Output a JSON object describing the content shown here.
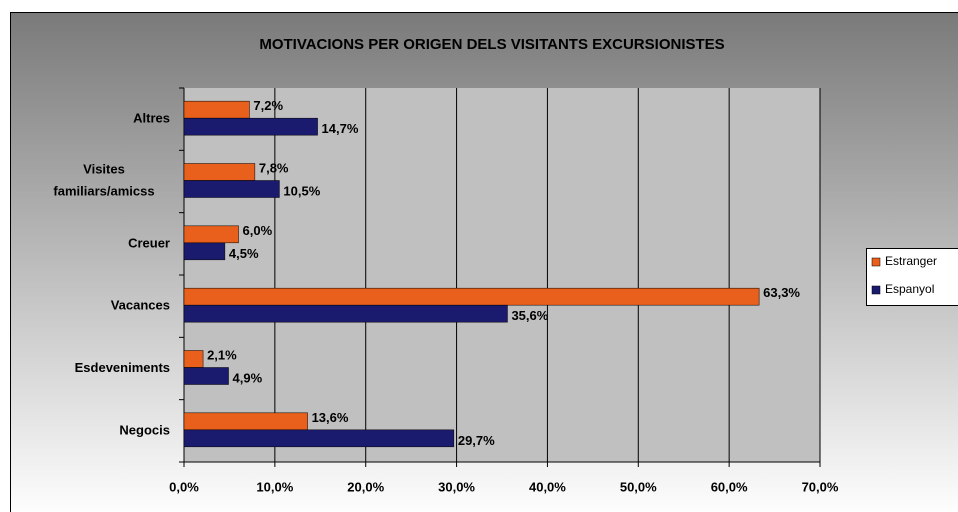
{
  "chart_data": {
    "type": "bar",
    "orientation": "horizontal",
    "title": "MOTIVACIONS PER ORIGEN DELS VISITANTS EXCURSIONISTES",
    "categories": [
      "Altres",
      "Visites familiars/amicss",
      "Creuer",
      "Vacances",
      "Esdeveniments",
      "Negocis"
    ],
    "series": [
      {
        "name": "Estranger",
        "color": "#e8601c",
        "values": [
          7.2,
          7.8,
          6.0,
          63.3,
          2.1,
          13.6
        ],
        "value_labels": [
          "7,2%",
          "7,8%",
          "6,0%",
          "63,3%",
          "2,1%",
          "13,6%"
        ]
      },
      {
        "name": "Espanyol",
        "color": "#1a1a6e",
        "values": [
          14.7,
          10.5,
          4.5,
          35.6,
          4.9,
          29.7
        ],
        "value_labels": [
          "14,7%",
          "10,5%",
          "4,5%",
          "35,6%",
          "4,9%",
          "29,7%"
        ]
      }
    ],
    "xlim": [
      0,
      70
    ],
    "xticks": [
      {
        "value": 0,
        "label": "0,0%"
      },
      {
        "value": 10,
        "label": "10,0%"
      },
      {
        "value": 20,
        "label": "20,0%"
      },
      {
        "value": 30,
        "label": "30,0%"
      },
      {
        "value": 40,
        "label": "40,0%"
      },
      {
        "value": 50,
        "label": "50,0%"
      },
      {
        "value": 60,
        "label": "60,0%"
      },
      {
        "value": 70,
        "label": "70,0%"
      }
    ],
    "grid": true,
    "legend": "right"
  }
}
